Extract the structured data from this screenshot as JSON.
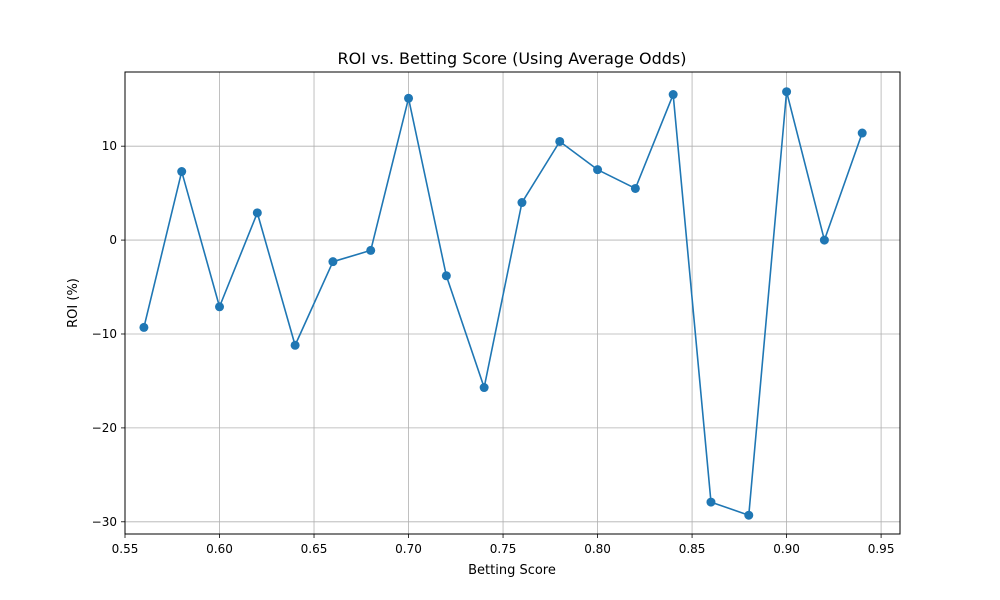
{
  "chart_data": {
    "type": "line",
    "title": "ROI vs. Betting Score (Using Average Odds)",
    "xlabel": "Betting Score",
    "ylabel": "ROI (%)",
    "xlim": [
      0.55,
      0.96
    ],
    "ylim": [
      -31.3,
      17.9
    ],
    "xticks": [
      0.55,
      0.6,
      0.65,
      0.7,
      0.75,
      0.8,
      0.85,
      0.9,
      0.95
    ],
    "xtick_labels": [
      "0.55",
      "0.60",
      "0.65",
      "0.70",
      "0.75",
      "0.80",
      "0.85",
      "0.90",
      "0.95"
    ],
    "yticks": [
      -30,
      -20,
      -10,
      0,
      10
    ],
    "ytick_labels": [
      "−30",
      "−20",
      "−10",
      "0",
      "10"
    ],
    "grid": true,
    "marker": "circle",
    "series": [
      {
        "color": "#1f77b4",
        "x": [
          0.56,
          0.58,
          0.6,
          0.62,
          0.64,
          0.66,
          0.68,
          0.7,
          0.72,
          0.74,
          0.76,
          0.78,
          0.8,
          0.82,
          0.84,
          0.86,
          0.88,
          0.9,
          0.92,
          0.94
        ],
        "y": [
          -9.3,
          7.3,
          -7.1,
          2.9,
          -11.2,
          -2.3,
          -1.1,
          15.1,
          -3.8,
          -15.7,
          4.0,
          10.5,
          7.5,
          5.5,
          15.5,
          -27.9,
          -29.3,
          15.8,
          0.0,
          11.4
        ]
      }
    ]
  }
}
